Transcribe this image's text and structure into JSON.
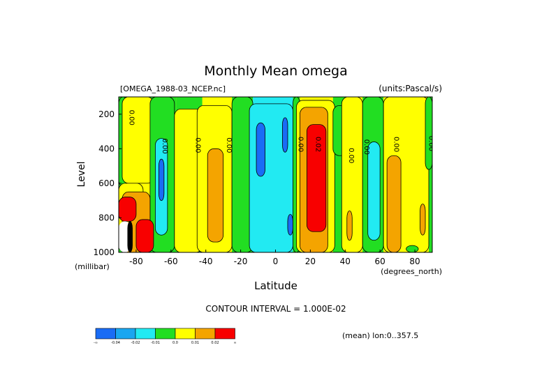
{
  "chart_data": {
    "type": "contour",
    "title": "Monthly Mean omega",
    "dataset_label": "[OMEGA_1988-03_NCEP.nc]",
    "units_label": "(units:Pascal/s)",
    "xlabel": "Latitude",
    "ylabel": "Level",
    "x_unit_label": "(degrees_north)",
    "y_unit_label": "(millibar)",
    "xlim": [
      -90,
      90
    ],
    "ylim": [
      1000,
      100
    ],
    "x_ticks": [
      -80,
      -60,
      -40,
      -20,
      0,
      20,
      40,
      60,
      80
    ],
    "y_ticks": [
      200,
      400,
      600,
      800,
      1000
    ],
    "contour_interval_text": "CONTOUR INTERVAL = 1.000E-02",
    "average_text": "(mean) lon:0..357.5",
    "legend": {
      "colors": [
        "#1a6cf5",
        "#1aa6f0",
        "#22eaf2",
        "#22de22",
        "#ffff00",
        "#f4a400",
        "#f80000"
      ],
      "labels": [
        "-∞",
        "-0.04",
        "-0.02",
        "-0.01",
        "0.0",
        "0.01",
        "0.02",
        "∞"
      ]
    },
    "columns": [
      {
        "x": [
          -90,
          -86
        ],
        "class": "green"
      },
      {
        "x": [
          -86,
          -72
        ],
        "class": "yellow"
      },
      {
        "x": [
          -72,
          -57
        ],
        "class": "green"
      },
      {
        "x": [
          -57,
          -42
        ],
        "class": "green"
      },
      {
        "x": [
          -42,
          -25
        ],
        "class": "yellow"
      },
      {
        "x": [
          -25,
          -13
        ],
        "class": "green"
      },
      {
        "x": [
          -13,
          10
        ],
        "class": "cyan"
      },
      {
        "x": [
          10,
          14
        ],
        "class": "green"
      },
      {
        "x": [
          14,
          33
        ],
        "class": "yellow"
      },
      {
        "x": [
          33,
          40
        ],
        "class": "green"
      },
      {
        "x": [
          40,
          50
        ],
        "class": "yellow"
      },
      {
        "x": [
          50,
          62
        ],
        "class": "green"
      },
      {
        "x": [
          62,
          88
        ],
        "class": "yellow"
      },
      {
        "x": [
          88,
          90
        ],
        "class": "green"
      }
    ],
    "regions": [
      {
        "class": "green",
        "x": [
          -90,
          -85
        ],
        "level": [
          100,
          620
        ]
      },
      {
        "class": "yellow",
        "x": [
          -88,
          -70
        ],
        "level": [
          100,
          600
        ]
      },
      {
        "class": "green",
        "x": [
          -72,
          -58
        ],
        "level": [
          100,
          1000
        ]
      },
      {
        "class": "cyan",
        "x": [
          -69,
          -62
        ],
        "level": [
          340,
          900
        ]
      },
      {
        "class": "blue",
        "x": [
          -67,
          -64
        ],
        "level": [
          460,
          700
        ]
      },
      {
        "class": "yellow",
        "x": [
          -58,
          -42
        ],
        "level": [
          170,
          1000
        ]
      },
      {
        "class": "yellow",
        "x": [
          -45,
          -25
        ],
        "level": [
          150,
          1000
        ]
      },
      {
        "class": "orange",
        "x": [
          -39,
          -30
        ],
        "level": [
          400,
          940
        ]
      },
      {
        "class": "green",
        "x": [
          -25,
          -13
        ],
        "level": [
          100,
          1000
        ]
      },
      {
        "class": "cyan",
        "x": [
          -15,
          10
        ],
        "level": [
          140,
          1000
        ]
      },
      {
        "class": "blue",
        "x": [
          -11,
          -6
        ],
        "level": [
          250,
          560
        ]
      },
      {
        "class": "blue",
        "x": [
          4,
          7
        ],
        "level": [
          220,
          420
        ]
      },
      {
        "class": "blue",
        "x": [
          7,
          10
        ],
        "level": [
          780,
          900
        ]
      },
      {
        "class": "green",
        "x": [
          10,
          14
        ],
        "level": [
          100,
          1000
        ]
      },
      {
        "class": "yellow",
        "x": [
          12,
          34
        ],
        "level": [
          120,
          1000
        ]
      },
      {
        "class": "orange",
        "x": [
          14,
          30
        ],
        "level": [
          160,
          1000
        ]
      },
      {
        "class": "red",
        "x": [
          18,
          29
        ],
        "level": [
          260,
          880
        ]
      },
      {
        "class": "green",
        "x": [
          33,
          41
        ],
        "level": [
          150,
          440
        ]
      },
      {
        "class": "yellow",
        "x": [
          38,
          50
        ],
        "level": [
          100,
          1000
        ]
      },
      {
        "class": "orange",
        "x": [
          41,
          44
        ],
        "level": [
          760,
          930
        ]
      },
      {
        "class": "green",
        "x": [
          50,
          62
        ],
        "level": [
          100,
          1000
        ]
      },
      {
        "class": "cyan",
        "x": [
          53,
          60
        ],
        "level": [
          360,
          930
        ]
      },
      {
        "class": "yellow",
        "x": [
          62,
          88
        ],
        "level": [
          100,
          1000
        ]
      },
      {
        "class": "orange",
        "x": [
          64,
          72
        ],
        "level": [
          440,
          1000
        ]
      },
      {
        "class": "orange",
        "x": [
          83,
          86
        ],
        "level": [
          720,
          900
        ]
      },
      {
        "class": "green",
        "x": [
          86,
          90
        ],
        "level": [
          100,
          520
        ]
      },
      {
        "class": "green",
        "x": [
          75,
          82
        ],
        "level": [
          960,
          1000
        ]
      },
      {
        "class": "yellow",
        "x": [
          -90,
          -76
        ],
        "level": [
          600,
          1000
        ]
      },
      {
        "class": "orange",
        "x": [
          -88,
          -72
        ],
        "level": [
          650,
          1000
        ]
      },
      {
        "class": "red",
        "x": [
          -90,
          -80
        ],
        "level": [
          680,
          820
        ]
      },
      {
        "class": "red",
        "x": [
          -80,
          -70
        ],
        "level": [
          810,
          1000
        ]
      },
      {
        "class": "white",
        "x": [
          -90,
          -83
        ],
        "level": [
          820,
          1000
        ]
      },
      {
        "class": "black",
        "x": [
          -85,
          -82
        ],
        "level": [
          820,
          1000
        ]
      }
    ],
    "contour_labels": [
      {
        "text": "0.00",
        "x": -85,
        "level": 220
      },
      {
        "text": "0.00",
        "x": -66,
        "level": 385
      },
      {
        "text": "0.00",
        "x": -47,
        "level": 380
      },
      {
        "text": "0.00",
        "x": -29,
        "level": 380
      },
      {
        "text": "0.00",
        "x": 12,
        "level": 375
      },
      {
        "text": "0.02",
        "x": 22,
        "level": 375
      },
      {
        "text": "0.00",
        "x": 41,
        "level": 440
      },
      {
        "text": "0.00",
        "x": 50,
        "level": 390
      },
      {
        "text": "0.00",
        "x": 67,
        "level": 375
      },
      {
        "text": "0.00",
        "x": 87,
        "level": 370
      }
    ]
  }
}
